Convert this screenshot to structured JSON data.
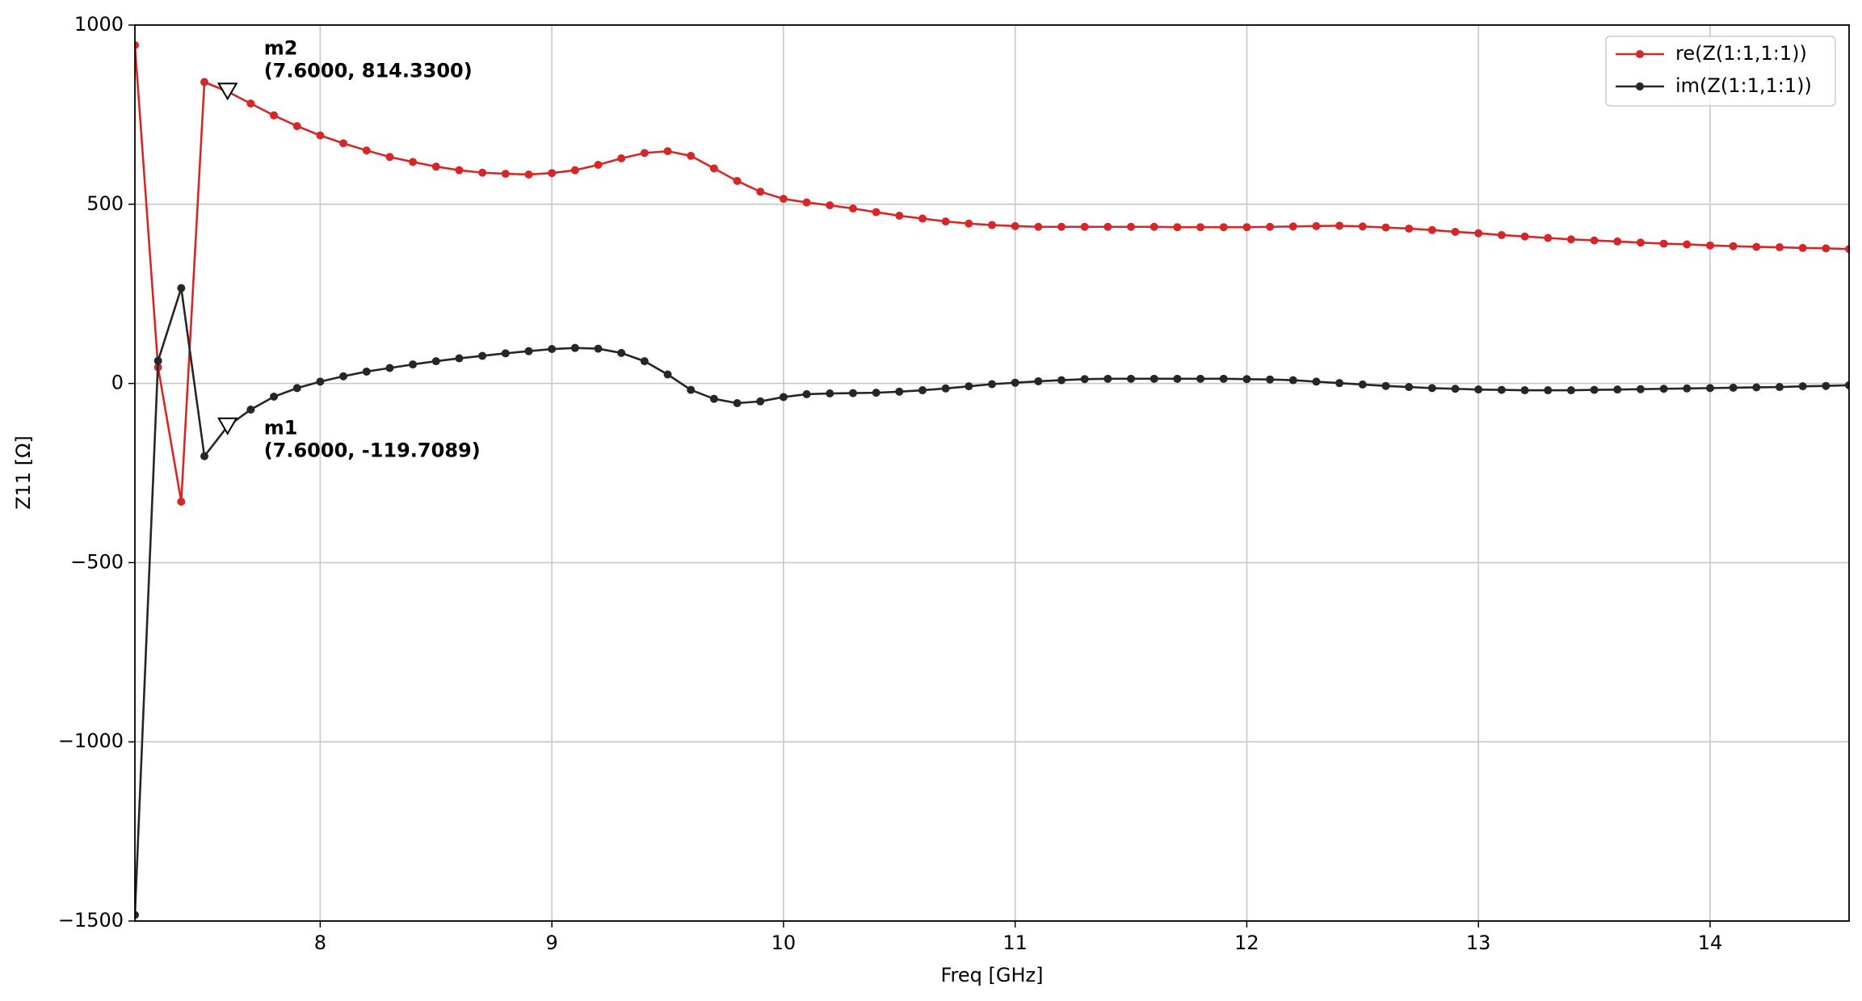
{
  "chart_data": {
    "type": "line",
    "xlabel": "Freq [GHz]",
    "ylabel": "Z11 [Ω]",
    "x": [
      7.2,
      7.3,
      7.4,
      7.5,
      7.6,
      7.7,
      7.8,
      7.9,
      8.0,
      8.1,
      8.2,
      8.3,
      8.4,
      8.5,
      8.6,
      8.7,
      8.8,
      8.9,
      9.0,
      9.1,
      9.2,
      9.3,
      9.4,
      9.5,
      9.6,
      9.7,
      9.8,
      9.9,
      10.0,
      10.1,
      10.2,
      10.3,
      10.4,
      10.5,
      10.6,
      10.7,
      10.8,
      10.9,
      11.0,
      11.1,
      11.2,
      11.3,
      11.4,
      11.5,
      11.6,
      11.7,
      11.8,
      11.9,
      12.0,
      12.1,
      12.2,
      12.3,
      12.4,
      12.5,
      12.6,
      12.7,
      12.8,
      12.9,
      13.0,
      13.1,
      13.2,
      13.3,
      13.4,
      13.5,
      13.6,
      13.7,
      13.8,
      13.9,
      14.0,
      14.1,
      14.2,
      14.3,
      14.4,
      14.5,
      14.6
    ],
    "series": [
      {
        "name": "re(Z(1:1,1:1))",
        "color": "#d62728",
        "values": [
          944,
          45,
          -330,
          841,
          814.33,
          781,
          748,
          718,
          692,
          670,
          650,
          632,
          618,
          605,
          595,
          588,
          585,
          583,
          587,
          595,
          610,
          628,
          643,
          648,
          635,
          600,
          565,
          535,
          515,
          505,
          497,
          488,
          478,
          468,
          460,
          452,
          446,
          442,
          439,
          437,
          437,
          437,
          437,
          437,
          437,
          436,
          436,
          436,
          436,
          437,
          438,
          439,
          440,
          438,
          435,
          432,
          428,
          423,
          419,
          414,
          410,
          406,
          402,
          399,
          396,
          393,
          390,
          388,
          385,
          383,
          381,
          380,
          378,
          377,
          375
        ]
      },
      {
        "name": "im(Z(1:1,1:1))",
        "color": "#262626",
        "values": [
          -1483,
          63,
          266,
          -203,
          -119.7089,
          -73,
          -37,
          -13,
          5,
          20,
          33,
          43,
          53,
          62,
          70,
          77,
          84,
          90,
          96,
          99,
          97,
          85,
          62,
          25,
          -18,
          -43,
          -55,
          -50,
          -38,
          -30,
          -28,
          -27,
          -26,
          -23,
          -19,
          -14,
          -8,
          -2,
          2,
          6,
          9,
          12,
          13,
          13,
          13,
          13,
          13,
          13,
          12,
          11,
          9,
          5,
          1,
          -3,
          -7,
          -10,
          -13,
          -15,
          -17,
          -18,
          -19,
          -19,
          -19,
          -18,
          -17,
          -16,
          -15,
          -14,
          -13,
          -12,
          -11,
          -10,
          -8,
          -7,
          -5
        ]
      }
    ],
    "markers": [
      {
        "name": "m2",
        "x": 7.6,
        "y": 814.33,
        "label": "(7.6000, 814.3300)"
      },
      {
        "name": "m1",
        "x": 7.6,
        "y": -119.7089,
        "label": "(7.6000, -119.7089)"
      }
    ],
    "xlim": [
      7.2,
      14.6
    ],
    "xticks": [
      8,
      9,
      10,
      11,
      12,
      13,
      14
    ],
    "ylim": [
      -1500,
      1000
    ],
    "yticks": [
      {
        "value": -1500,
        "label": "−1500"
      },
      {
        "value": -1000,
        "label": "−1000"
      },
      {
        "value": -500,
        "label": "−500"
      },
      0,
      500,
      1000
    ],
    "grid": true,
    "legend": "upper right"
  }
}
